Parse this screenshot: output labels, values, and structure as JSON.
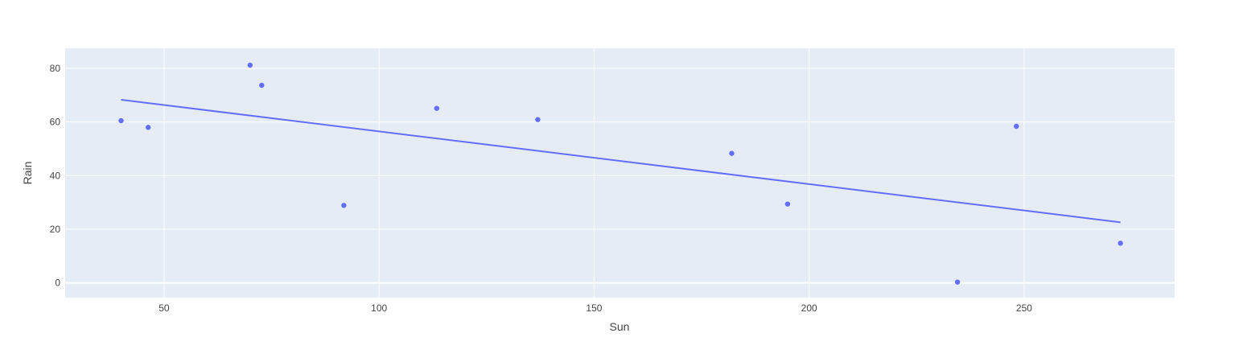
{
  "chart_data": {
    "type": "scatter",
    "title": "",
    "xlabel": "Sun",
    "ylabel": "Rain",
    "xlim": [
      27,
      285
    ],
    "ylim": [
      -5.5,
      87.5
    ],
    "xticks": [
      50,
      100,
      150,
      200,
      250
    ],
    "yticks": [
      0,
      20,
      40,
      60,
      80
    ],
    "grid": true,
    "legend": "none",
    "colors": {
      "plot_background": "#E5ECF6",
      "grid": "#ffffff",
      "marker": "#636EFA",
      "trendline": "#636EFA",
      "text": "#444444"
    },
    "points": [
      {
        "x": 40,
        "y": 60.5
      },
      {
        "x": 46.3,
        "y": 58
      },
      {
        "x": 70,
        "y": 81.2
      },
      {
        "x": 72.7,
        "y": 73.7
      },
      {
        "x": 91.8,
        "y": 28.9
      },
      {
        "x": 113.4,
        "y": 65.1
      },
      {
        "x": 136.9,
        "y": 60.9
      },
      {
        "x": 182,
        "y": 48.3
      },
      {
        "x": 195,
        "y": 29.4
      },
      {
        "x": 234.5,
        "y": 0.3
      },
      {
        "x": 248.2,
        "y": 58.4
      },
      {
        "x": 272.4,
        "y": 14.8
      }
    ],
    "trendline": {
      "x": [
        40,
        272.4
      ],
      "y": [
        68.3,
        22.6
      ]
    }
  }
}
